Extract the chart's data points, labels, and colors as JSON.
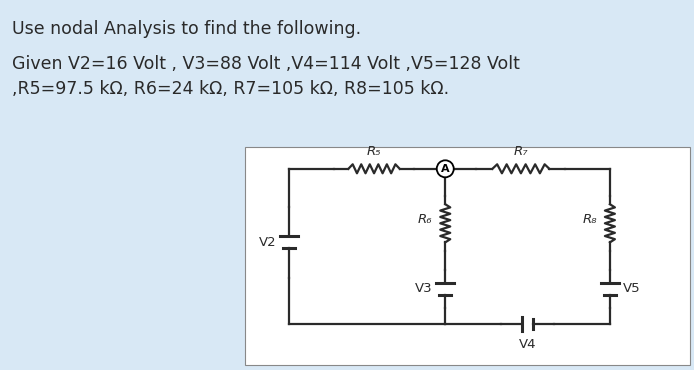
{
  "bg_color": "#d8e8f5",
  "circuit_bg": "#ffffff",
  "text_color": "#2a2a2a",
  "title_line1": "Use nodal Analysis to find the following.",
  "title_line2": "Given V2=16 Volt , V3=88 Volt ,V4=114 Volt ,V5=128 Volt",
  "title_line3": ",R5=97.5 kΩ, R6=24 kΩ, R7=105 kΩ, R8=105 kΩ.",
  "font_size_title": 12.5,
  "wire_color": "#2a2a2a",
  "lw": 1.6
}
